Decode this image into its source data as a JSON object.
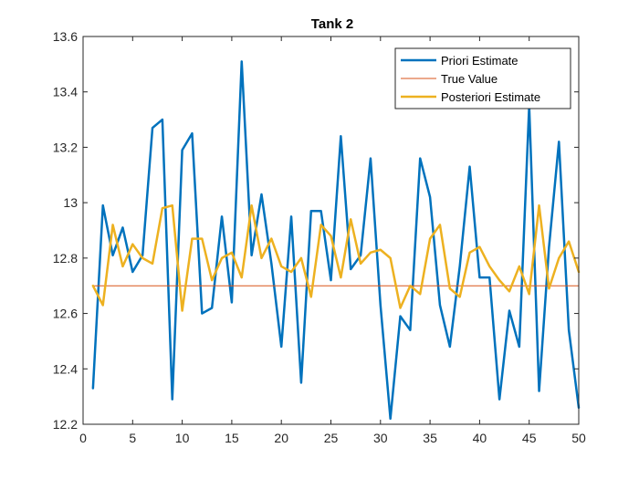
{
  "chart_data": {
    "type": "line",
    "title": "Tank 2",
    "xlabel": "",
    "ylabel": "",
    "xlim": [
      0,
      50
    ],
    "ylim": [
      12.2,
      13.6
    ],
    "xticks": [
      0,
      5,
      10,
      15,
      20,
      25,
      30,
      35,
      40,
      45,
      50
    ],
    "yticks": [
      12.2,
      12.4,
      12.6,
      12.8,
      13,
      13.2,
      13.4,
      13.6
    ],
    "xtick_labels": [
      "0",
      "5",
      "10",
      "15",
      "20",
      "25",
      "30",
      "35",
      "40",
      "45",
      "50"
    ],
    "ytick_labels": [
      "12.2",
      "12.4",
      "12.6",
      "12.8",
      "13",
      "13.2",
      "13.4",
      "13.6"
    ],
    "grid": false,
    "legend_position": "top-right",
    "x": [
      1,
      2,
      3,
      4,
      5,
      6,
      7,
      8,
      9,
      10,
      11,
      12,
      13,
      14,
      15,
      16,
      17,
      18,
      19,
      20,
      21,
      22,
      23,
      24,
      25,
      26,
      27,
      28,
      29,
      30,
      31,
      32,
      33,
      34,
      35,
      36,
      37,
      38,
      39,
      40,
      41,
      42,
      43,
      44,
      45,
      46,
      47,
      48,
      49,
      50
    ],
    "series": [
      {
        "name": "Priori Estimate",
        "color": "#0072BD",
        "line_width": 2.5,
        "values": [
          12.33,
          12.99,
          12.81,
          12.91,
          12.75,
          12.81,
          13.27,
          13.3,
          12.29,
          13.19,
          13.25,
          12.6,
          12.62,
          12.95,
          12.64,
          13.51,
          12.81,
          13.03,
          12.78,
          12.48,
          12.95,
          12.35,
          12.97,
          12.97,
          12.72,
          13.24,
          12.76,
          12.81,
          13.16,
          12.63,
          12.22,
          12.59,
          12.54,
          13.16,
          13.02,
          12.63,
          12.48,
          12.77,
          13.13,
          12.73,
          12.73,
          12.29,
          12.61,
          12.48,
          13.35,
          12.32,
          12.84,
          13.22,
          12.54,
          12.26
        ]
      },
      {
        "name": "True Value",
        "color": "#D95319",
        "line_width": 1,
        "values": [
          12.7,
          12.7,
          12.7,
          12.7,
          12.7,
          12.7,
          12.7,
          12.7,
          12.7,
          12.7,
          12.7,
          12.7,
          12.7,
          12.7,
          12.7,
          12.7,
          12.7,
          12.7,
          12.7,
          12.7,
          12.7,
          12.7,
          12.7,
          12.7,
          12.7,
          12.7,
          12.7,
          12.7,
          12.7,
          12.7,
          12.7,
          12.7,
          12.7,
          12.7,
          12.7,
          12.7,
          12.7,
          12.7,
          12.7,
          12.7,
          12.7,
          12.7,
          12.7,
          12.7,
          12.7,
          12.7,
          12.7,
          12.7,
          12.7,
          12.7
        ]
      },
      {
        "name": "Posteriori Estimate",
        "color": "#EDB120",
        "line_width": 2.5,
        "values": [
          12.7,
          12.63,
          12.92,
          12.77,
          12.85,
          12.8,
          12.78,
          12.98,
          12.99,
          12.61,
          12.87,
          12.87,
          12.72,
          12.8,
          12.82,
          12.73,
          12.99,
          12.8,
          12.87,
          12.77,
          12.75,
          12.8,
          12.66,
          12.92,
          12.88,
          12.73,
          12.94,
          12.78,
          12.82,
          12.83,
          12.8,
          12.62,
          12.7,
          12.67,
          12.87,
          12.92,
          12.69,
          12.66,
          12.82,
          12.84,
          12.77,
          12.72,
          12.68,
          12.77,
          12.67,
          12.99,
          12.69,
          12.8,
          12.86,
          12.75
        ]
      }
    ]
  }
}
